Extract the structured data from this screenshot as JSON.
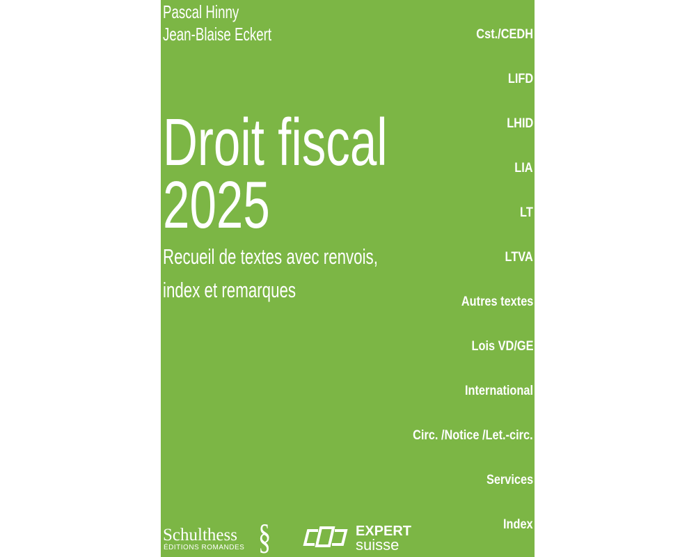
{
  "cover": {
    "background_color": "#7cb645",
    "authors": [
      "Pascal Hinny",
      "Jean-Blaise Eckert"
    ],
    "title_line1": "Droit fiscal",
    "title_line2": "2025",
    "subtitle_line1": "Recueil de textes avec renvois,",
    "subtitle_line2": "index et remarques",
    "index_tabs": [
      "Cst./CEDH",
      "LIFD",
      "LHID",
      "LIA",
      "LT",
      "LTVA",
      "Autres textes",
      "Lois VD/GE",
      "International",
      "Circ. /Notice /Let.-circ.",
      "Services",
      "Index"
    ],
    "publisher": {
      "name": "Schulthess",
      "subname": "ÉDITIONS ROMANDES",
      "symbol": "§"
    },
    "partner": {
      "line1": "EXPERT",
      "line2": "suisse"
    }
  }
}
